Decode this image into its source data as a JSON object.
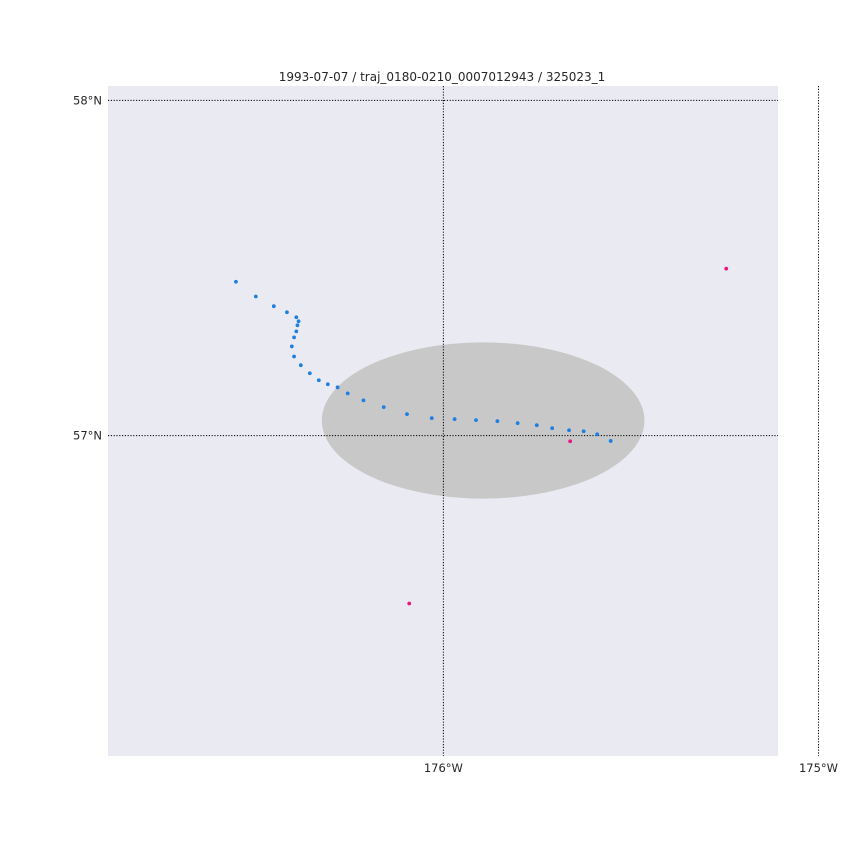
{
  "title": "1993-07-07 / traj_0180-0210_0007012943 / 325023_1",
  "map": {
    "lon_range": [
      -176.894,
      -175.108
    ],
    "lat_range": [
      56.044,
      58.043
    ],
    "background_color": "#eaeaf2",
    "gridline_color": "#000000",
    "grid": true
  },
  "ticks": {
    "lat": [
      {
        "value": 58,
        "label": "58°N"
      },
      {
        "value": 57,
        "label": "57°N"
      }
    ],
    "lon": [
      {
        "value": -176,
        "label": "176°W"
      },
      {
        "value": -175,
        "label": "175°W"
      }
    ]
  },
  "ellipse": {
    "center_lon": -175.894,
    "center_lat": 57.045,
    "semi_axis_lon": 0.43,
    "semi_axis_lat": 0.233,
    "color": "#c8c8c8"
  },
  "chart_data": {
    "type": "scatter",
    "title": "1993-07-07 / traj_0180-0210_0007012943 / 325023_1",
    "series": [
      {
        "color": "#1f7fe0",
        "points": [
          {
            "lon": -176.553,
            "lat": 57.459
          },
          {
            "lon": -176.5,
            "lat": 57.415
          },
          {
            "lon": -176.452,
            "lat": 57.386
          },
          {
            "lon": -176.417,
            "lat": 57.368
          },
          {
            "lon": -176.392,
            "lat": 57.353
          },
          {
            "lon": -176.386,
            "lat": 57.341
          },
          {
            "lon": -176.389,
            "lat": 57.329
          },
          {
            "lon": -176.392,
            "lat": 57.311
          },
          {
            "lon": -176.398,
            "lat": 57.293
          },
          {
            "lon": -176.404,
            "lat": 57.266
          },
          {
            "lon": -176.398,
            "lat": 57.236
          },
          {
            "lon": -176.38,
            "lat": 57.21
          },
          {
            "lon": -176.356,
            "lat": 57.186
          },
          {
            "lon": -176.332,
            "lat": 57.165
          },
          {
            "lon": -176.308,
            "lat": 57.153
          },
          {
            "lon": -176.282,
            "lat": 57.144
          },
          {
            "lon": -176.255,
            "lat": 57.126
          },
          {
            "lon": -176.213,
            "lat": 57.105
          },
          {
            "lon": -176.159,
            "lat": 57.085
          },
          {
            "lon": -176.097,
            "lat": 57.064
          },
          {
            "lon": -176.031,
            "lat": 57.052
          },
          {
            "lon": -175.97,
            "lat": 57.049
          },
          {
            "lon": -175.913,
            "lat": 57.046
          },
          {
            "lon": -175.856,
            "lat": 57.043
          },
          {
            "lon": -175.802,
            "lat": 57.037
          },
          {
            "lon": -175.751,
            "lat": 57.031
          },
          {
            "lon": -175.71,
            "lat": 57.022
          },
          {
            "lon": -175.665,
            "lat": 57.016
          },
          {
            "lon": -175.626,
            "lat": 57.013
          },
          {
            "lon": -175.59,
            "lat": 57.004
          },
          {
            "lon": -175.554,
            "lat": 56.984
          }
        ]
      },
      {
        "color": "#e8177f",
        "points": [
          {
            "lon": -175.246,
            "lat": 57.498
          },
          {
            "lon": -175.662,
            "lat": 56.983
          },
          {
            "lon": -176.091,
            "lat": 56.499
          }
        ]
      }
    ]
  }
}
